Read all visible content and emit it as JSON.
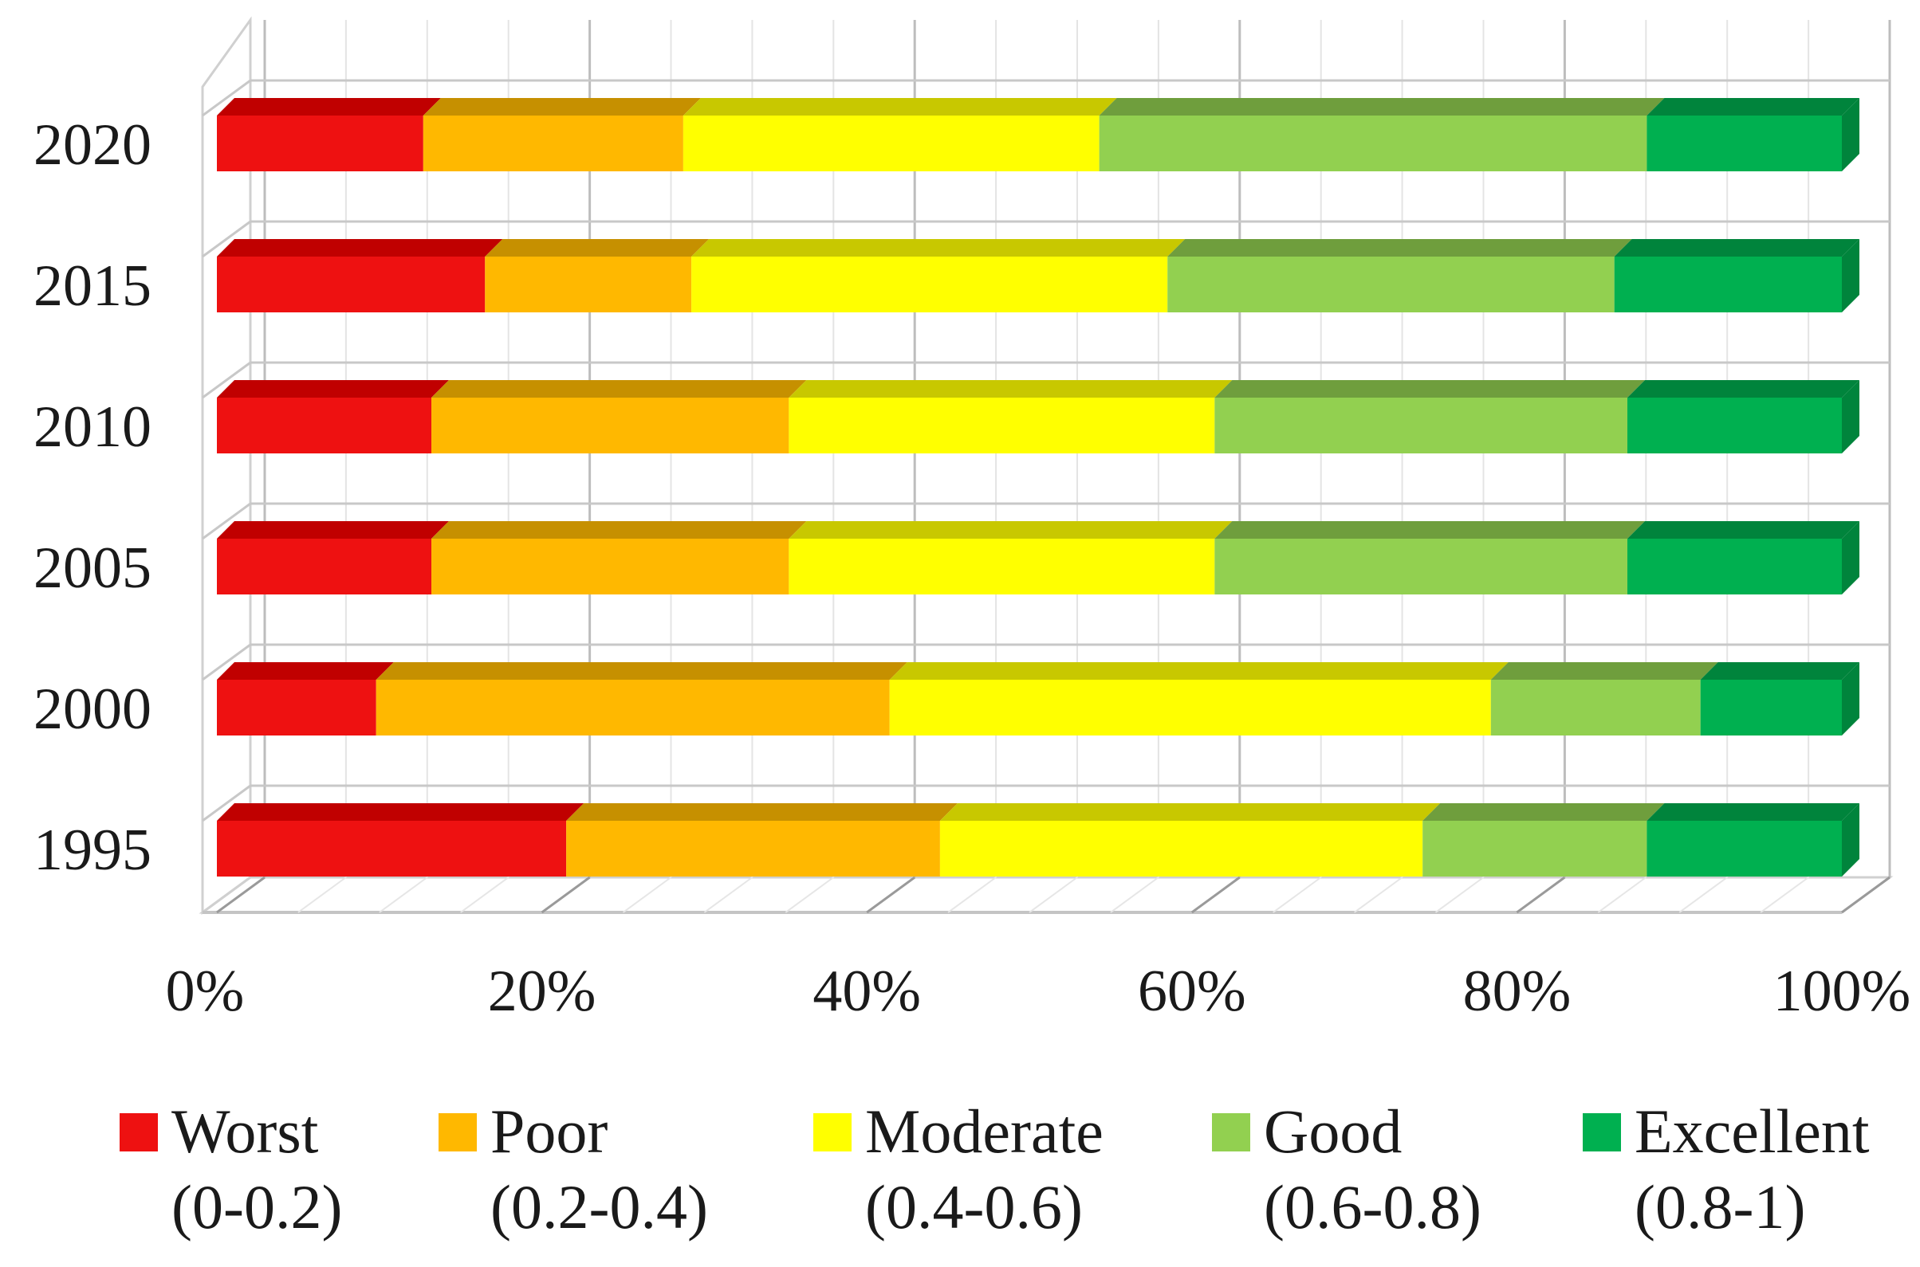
{
  "chart_data": {
    "type": "bar",
    "orientation": "horizontal",
    "stacked": "percent",
    "categories": [
      "1995",
      "2000",
      "2005",
      "2010",
      "2015",
      "2020"
    ],
    "series": [
      {
        "name": "Worst",
        "range": "(0-0.2)",
        "color": "#ee1111",
        "top_color": "#c00000",
        "values": [
          21.5,
          9.8,
          13.2,
          13.2,
          16.5,
          12.7
        ]
      },
      {
        "name": "Poor",
        "range": "(0.2-0.4)",
        "color": "#ffb800",
        "top_color": "#c69000",
        "values": [
          23.0,
          31.6,
          22.0,
          22.0,
          12.7,
          16.0
        ]
      },
      {
        "name": "Moderate",
        "range": "(0.4-0.6)",
        "color": "#ffff00",
        "top_color": "#c8c800",
        "values": [
          29.7,
          37.0,
          26.2,
          26.2,
          29.3,
          25.6
        ]
      },
      {
        "name": "Good",
        "range": "(0.6-0.8)",
        "color": "#92d050",
        "top_color": "#6f9e3d",
        "values": [
          13.8,
          12.9,
          25.4,
          25.4,
          27.5,
          33.7
        ]
      },
      {
        "name": "Excellent",
        "range": "(0.8-1)",
        "color": "#00b050",
        "top_color": "#00843c",
        "values": [
          12.0,
          8.7,
          13.2,
          13.2,
          14.0,
          12.0
        ]
      }
    ],
    "x_ticks": [
      "0%",
      "20%",
      "40%",
      "60%",
      "80%",
      "100%"
    ],
    "xlim": [
      0,
      100
    ],
    "grid": true,
    "legend_position": "bottom",
    "style": "3d"
  }
}
